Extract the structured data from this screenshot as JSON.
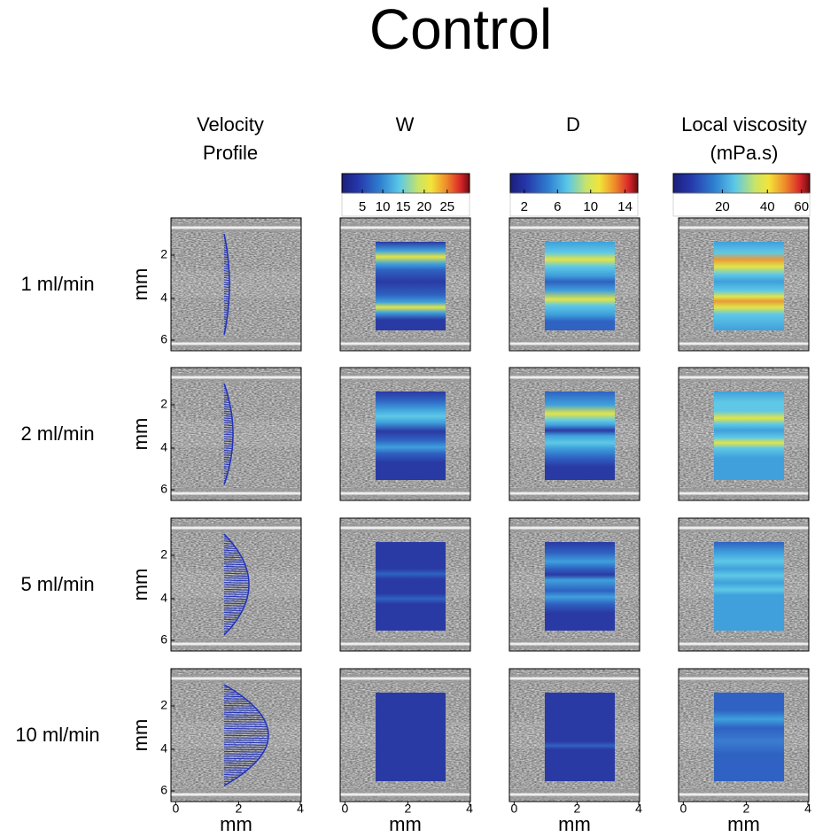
{
  "title": "Control",
  "columns": [
    {
      "lines": [
        "Velocity",
        "Profile"
      ]
    },
    {
      "lines": [
        "W"
      ]
    },
    {
      "lines": [
        "D"
      ]
    },
    {
      "lines": [
        "Local viscosity",
        "(mPa.s)"
      ]
    }
  ],
  "colorbars": [
    {
      "ticks": [
        5,
        10,
        15,
        20,
        25
      ]
    },
    {
      "ticks": [
        2,
        6,
        10,
        14
      ]
    },
    {
      "ticks": [
        20,
        40,
        60
      ]
    }
  ],
  "rows": [
    "1 ml/min",
    "2 ml/min",
    "5 ml/min",
    "10 ml/min"
  ],
  "y_axis": {
    "label": "mm",
    "ticks": [
      2,
      4,
      6
    ]
  },
  "x_axis": {
    "label": "mm",
    "ticks": [
      0,
      2,
      4
    ]
  }
}
